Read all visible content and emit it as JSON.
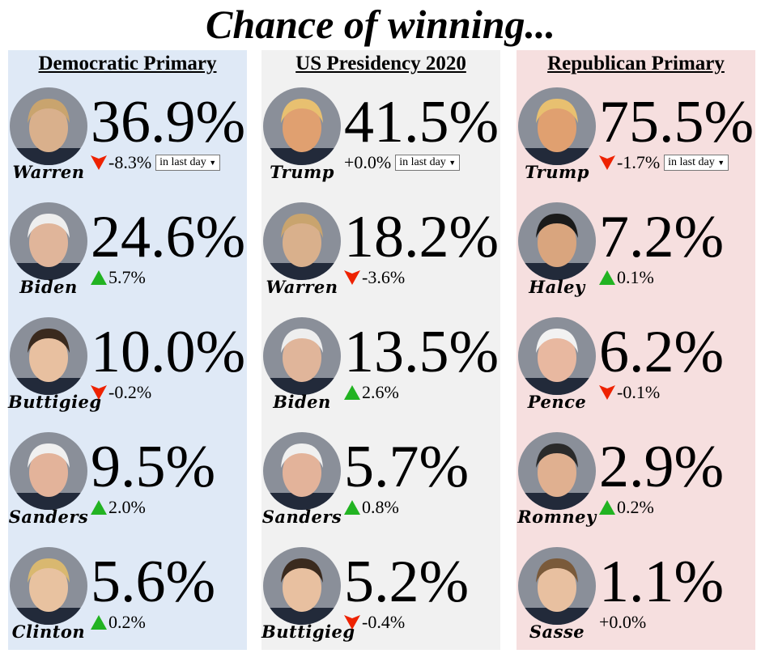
{
  "title": "Chance of winning...",
  "colors": {
    "up": "#22b322",
    "down": "#ee2200"
  },
  "panels": [
    {
      "header": "Democratic Primary",
      "bg": "#dfe9f6",
      "rows": [
        {
          "name": "Warren",
          "pct": "36.9%",
          "change": "-8.3%",
          "dir": "down",
          "period": "in last day",
          "skin": "#d9b08c",
          "hair": "#c9a46e"
        },
        {
          "name": "Biden",
          "pct": "24.6%",
          "change": "5.7%",
          "dir": "up",
          "skin": "#e0b59a",
          "hair": "#eeeeee"
        },
        {
          "name": "Buttigieg",
          "pct": "10.0%",
          "change": "-0.2%",
          "dir": "down",
          "skin": "#e8c0a0",
          "hair": "#3a2a1e"
        },
        {
          "name": "Sanders",
          "pct": "9.5%",
          "change": "2.0%",
          "dir": "up",
          "skin": "#e3b39a",
          "hair": "#f0f0f0"
        },
        {
          "name": "Clinton",
          "pct": "5.6%",
          "change": "0.2%",
          "dir": "up",
          "skin": "#e8c2a0",
          "hair": "#d9b870"
        }
      ]
    },
    {
      "header": "US Presidency 2020",
      "bg": "#f1f1f1",
      "rows": [
        {
          "name": "Trump",
          "pct": "41.5%",
          "change": "+0.0%",
          "dir": "none",
          "period": "in last day",
          "skin": "#e0a070",
          "hair": "#e8c070"
        },
        {
          "name": "Warren",
          "pct": "18.2%",
          "change": "-3.6%",
          "dir": "down",
          "skin": "#d9b08c",
          "hair": "#c9a46e"
        },
        {
          "name": "Biden",
          "pct": "13.5%",
          "change": "2.6%",
          "dir": "up",
          "skin": "#e0b59a",
          "hair": "#eeeeee"
        },
        {
          "name": "Sanders",
          "pct": "5.7%",
          "change": "0.8%",
          "dir": "up",
          "skin": "#e3b39a",
          "hair": "#f0f0f0"
        },
        {
          "name": "Buttigieg",
          "pct": "5.2%",
          "change": "-0.4%",
          "dir": "down",
          "skin": "#e8c0a0",
          "hair": "#3a2a1e"
        }
      ]
    },
    {
      "header": "Republican Primary",
      "bg": "#f6dfdf",
      "rows": [
        {
          "name": "Trump",
          "pct": "75.5%",
          "change": "-1.7%",
          "dir": "down",
          "period": "in last day",
          "skin": "#e0a070",
          "hair": "#e8c070"
        },
        {
          "name": "Haley",
          "pct": "7.2%",
          "change": "0.1%",
          "dir": "up",
          "skin": "#d9a57e",
          "hair": "#1a1a1a"
        },
        {
          "name": "Pence",
          "pct": "6.2%",
          "change": "-0.1%",
          "dir": "down",
          "skin": "#e8b8a0",
          "hair": "#f2f2f2"
        },
        {
          "name": "Romney",
          "pct": "2.9%",
          "change": "0.2%",
          "dir": "up",
          "skin": "#e0b090",
          "hair": "#2a2a2a"
        },
        {
          "name": "Sasse",
          "pct": "1.1%",
          "change": "+0.0%",
          "dir": "none",
          "skin": "#e8c0a0",
          "hair": "#7a5a3a"
        }
      ]
    }
  ]
}
